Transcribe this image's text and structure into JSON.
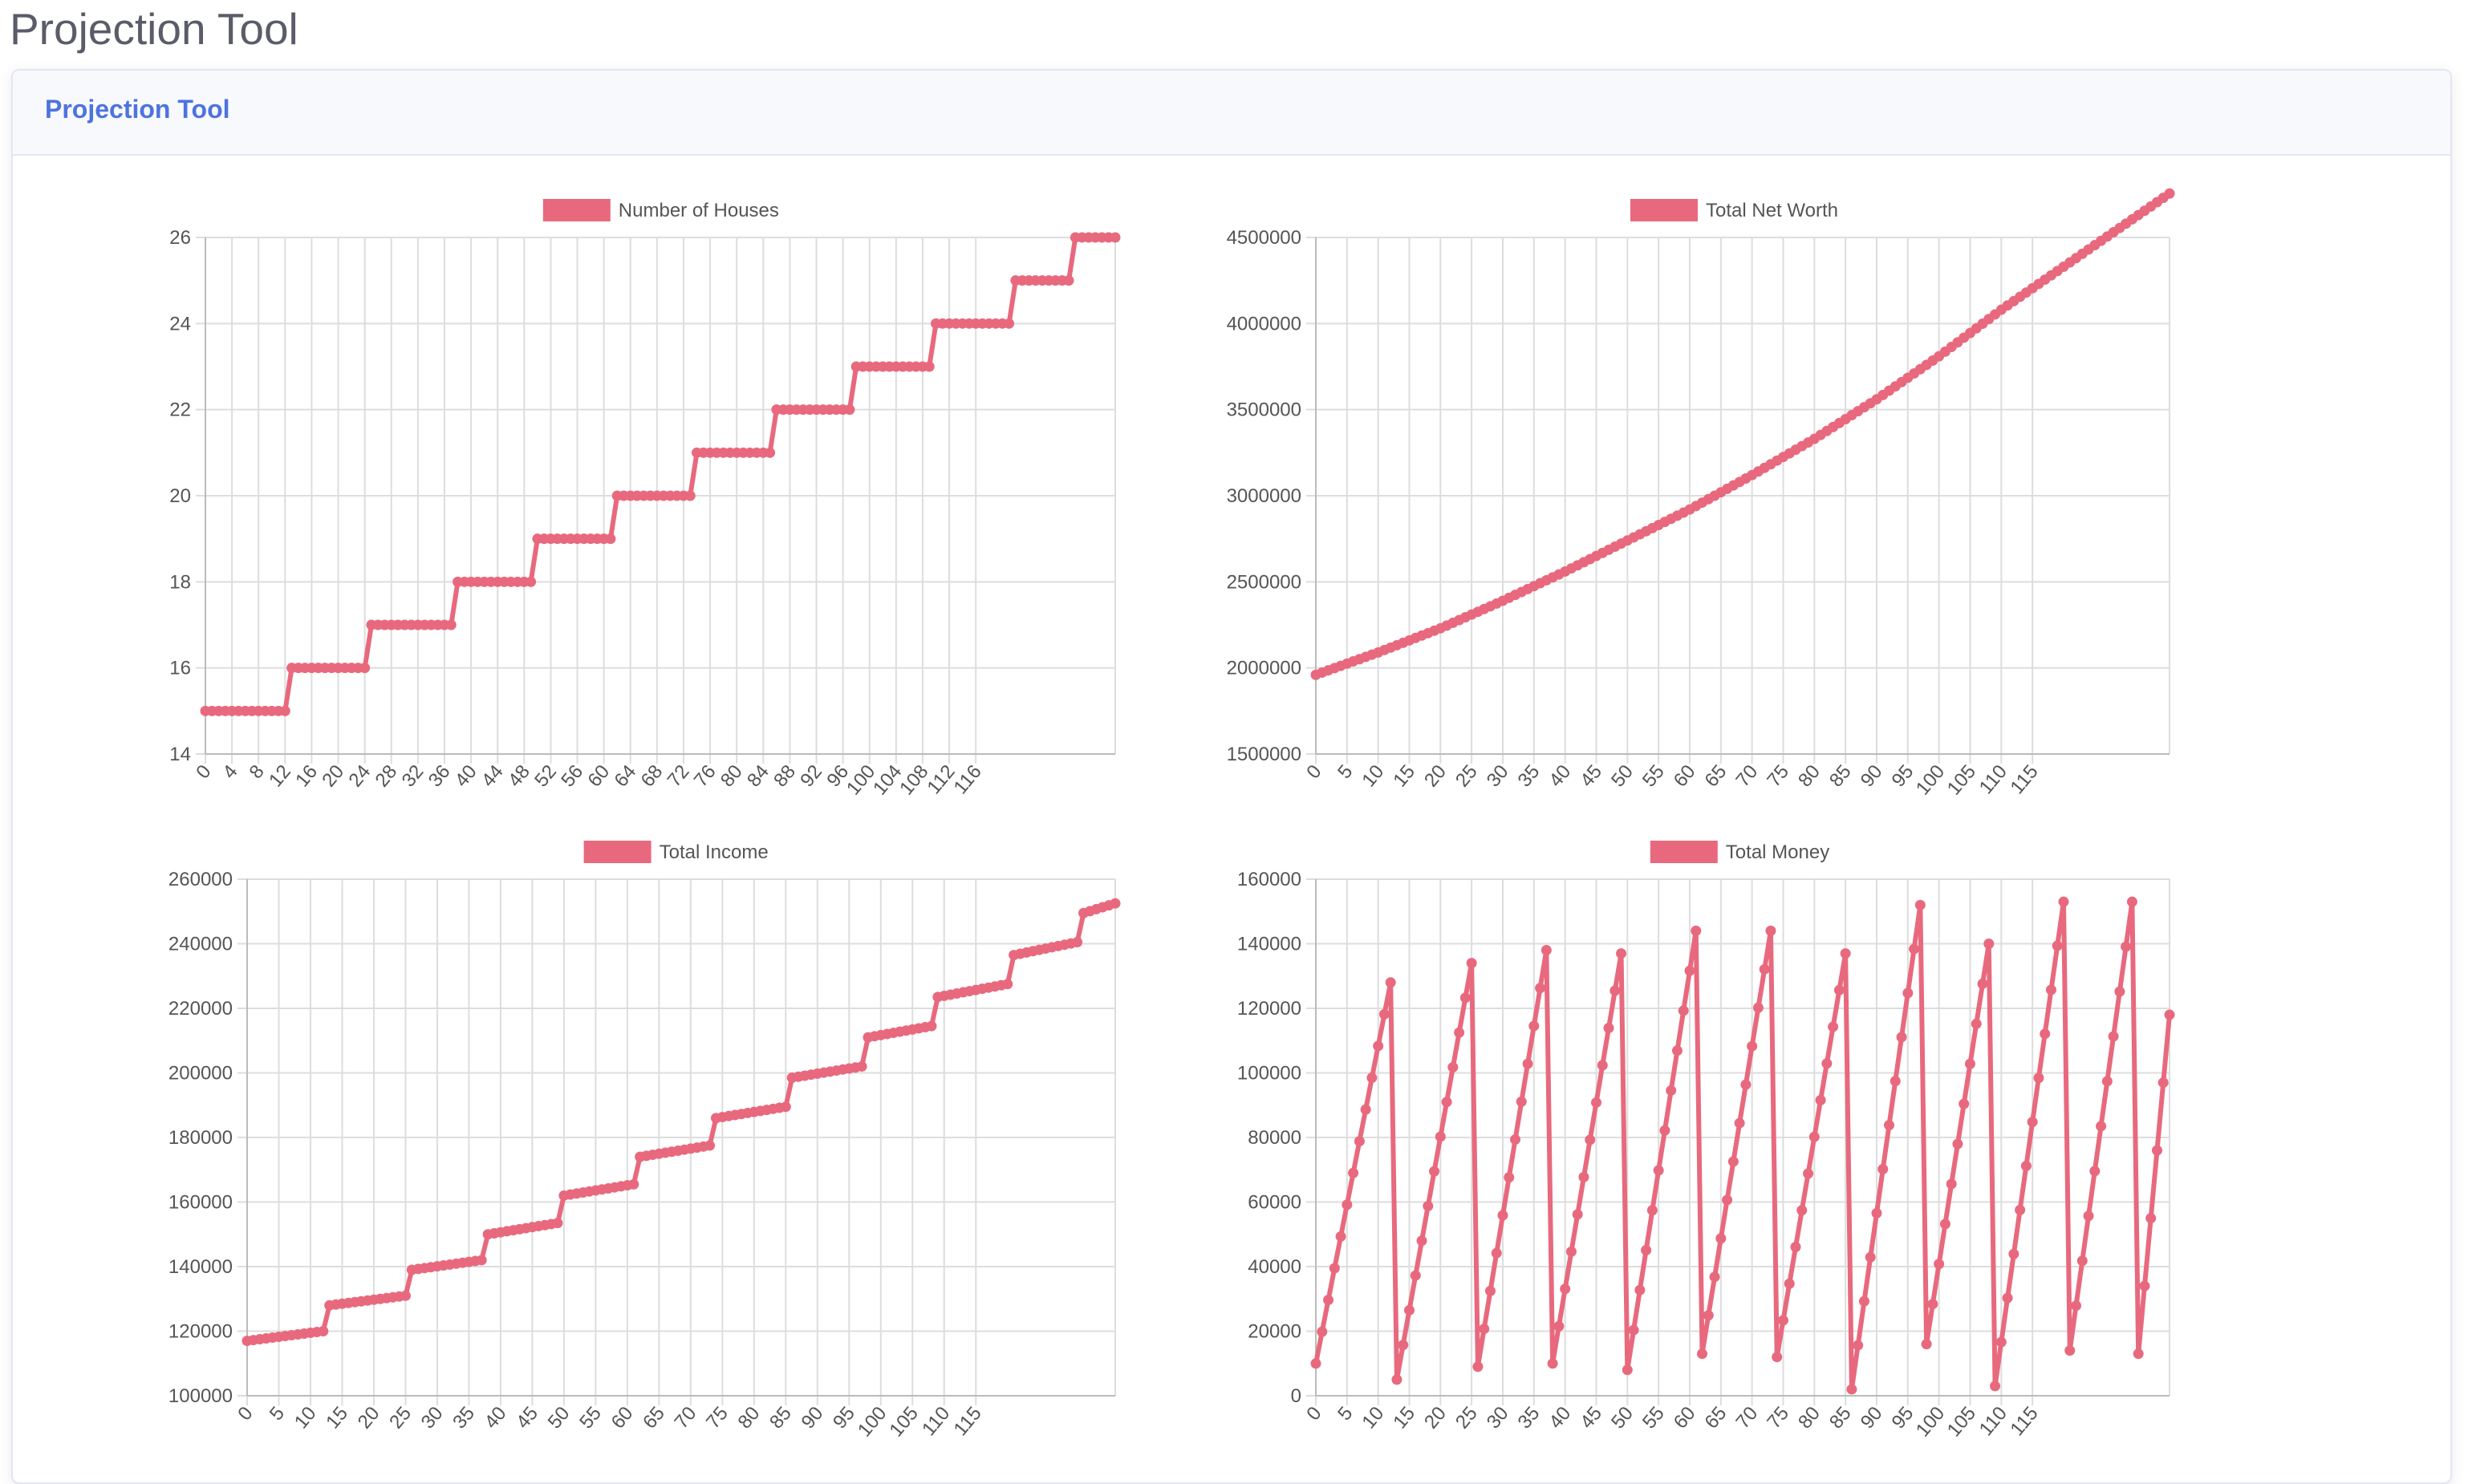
{
  "page": {
    "title": "Projection Tool"
  },
  "card": {
    "title": "Projection Tool"
  },
  "series_color": "#e8697e",
  "chart_data": [
    {
      "id": "houses",
      "type": "line",
      "title": "",
      "legend": {
        "label": "Number of Houses",
        "placement": "top"
      },
      "xlabel": "",
      "ylabel": "",
      "grid": true,
      "ylim": [
        14,
        26
      ],
      "y_ticks": [
        14,
        16,
        18,
        20,
        22,
        24,
        26
      ],
      "x": {
        "start": 0,
        "end": 120
      },
      "x_tick_labels": [
        0,
        4,
        8,
        12,
        16,
        20,
        24,
        28,
        32,
        36,
        40,
        44,
        48,
        52,
        56,
        60,
        64,
        68,
        72,
        76,
        80,
        84,
        88,
        92,
        96,
        100,
        104,
        108,
        112,
        116
      ],
      "values": [
        15,
        15,
        15,
        15,
        15,
        15,
        15,
        15,
        15,
        15,
        15,
        15,
        15,
        16,
        16,
        16,
        16,
        16,
        16,
        16,
        16,
        16,
        16,
        16,
        16,
        17,
        17,
        17,
        17,
        17,
        17,
        17,
        17,
        17,
        17,
        17,
        17,
        17,
        18,
        18,
        18,
        18,
        18,
        18,
        18,
        18,
        18,
        18,
        18,
        18,
        19,
        19,
        19,
        19,
        19,
        19,
        19,
        19,
        19,
        19,
        19,
        19,
        20,
        20,
        20,
        20,
        20,
        20,
        20,
        20,
        20,
        20,
        20,
        20,
        21,
        21,
        21,
        21,
        21,
        21,
        21,
        21,
        21,
        21,
        21,
        21,
        22,
        22,
        22,
        22,
        22,
        22,
        22,
        22,
        22,
        22,
        22,
        22,
        23,
        23,
        23,
        23,
        23,
        23,
        23,
        23,
        23,
        23,
        23,
        23,
        24,
        24,
        24,
        24,
        24,
        24,
        24,
        24,
        24,
        24,
        24,
        24,
        25,
        25,
        25,
        25,
        25,
        25,
        25,
        25,
        25,
        26,
        26,
        26,
        26,
        26,
        26,
        26
      ]
    },
    {
      "id": "networth",
      "type": "line",
      "title": "",
      "legend": {
        "label": "Total Net Worth",
        "placement": "top"
      },
      "xlabel": "",
      "ylabel": "",
      "grid": true,
      "ylim": [
        1500000,
        4500000
      ],
      "y_ticks": [
        1500000,
        2000000,
        2500000,
        3000000,
        3500000,
        4000000,
        4500000
      ],
      "x": {
        "start": 0,
        "end": 120
      },
      "x_tick_labels": [
        0,
        5,
        10,
        15,
        20,
        25,
        30,
        35,
        40,
        45,
        50,
        55,
        60,
        65,
        70,
        75,
        80,
        85,
        90,
        95,
        100,
        105,
        110,
        115
      ],
      "points": [
        [
          0,
          1960000
        ],
        [
          10,
          2090000
        ],
        [
          20,
          2230000
        ],
        [
          30,
          2390000
        ],
        [
          40,
          2560000
        ],
        [
          50,
          2740000
        ],
        [
          60,
          2920000
        ],
        [
          70,
          3120000
        ],
        [
          80,
          3330000
        ],
        [
          90,
          3560000
        ],
        [
          100,
          3810000
        ],
        [
          110,
          4080000
        ],
        [
          120,
          4330000
        ]
      ]
    },
    {
      "id": "income",
      "type": "line",
      "title": "",
      "legend": {
        "label": "Total Income",
        "placement": "top"
      },
      "xlabel": "",
      "ylabel": "",
      "grid": true,
      "ylim": [
        100000,
        260000
      ],
      "y_ticks": [
        100000,
        120000,
        140000,
        160000,
        180000,
        200000,
        220000,
        240000,
        260000
      ],
      "x": {
        "start": 0,
        "end": 120
      },
      "x_tick_labels": [
        0,
        5,
        10,
        15,
        20,
        25,
        30,
        35,
        40,
        45,
        50,
        55,
        60,
        65,
        70,
        75,
        80,
        85,
        90,
        95,
        100,
        105,
        110,
        115
      ],
      "segments": [
        {
          "x_start": 0,
          "x_end": 12,
          "y_start": 117000,
          "y_end": 120000
        },
        {
          "x_start": 13,
          "x_end": 25,
          "y_start": 128000,
          "y_end": 131000
        },
        {
          "x_start": 26,
          "x_end": 37,
          "y_start": 139000,
          "y_end": 142000
        },
        {
          "x_start": 38,
          "x_end": 49,
          "y_start": 150000,
          "y_end": 153500
        },
        {
          "x_start": 50,
          "x_end": 61,
          "y_start": 162000,
          "y_end": 165500
        },
        {
          "x_start": 62,
          "x_end": 73,
          "y_start": 174000,
          "y_end": 177500
        },
        {
          "x_start": 74,
          "x_end": 85,
          "y_start": 186000,
          "y_end": 189500
        },
        {
          "x_start": 86,
          "x_end": 97,
          "y_start": 198500,
          "y_end": 202000
        },
        {
          "x_start": 98,
          "x_end": 108,
          "y_start": 211000,
          "y_end": 214500
        },
        {
          "x_start": 109,
          "x_end": 120,
          "y_start": 223500,
          "y_end": 227500
        },
        {
          "x_start": 121,
          "x_end": 131,
          "y_start": 236500,
          "y_end": 240500
        },
        {
          "x_start": 132,
          "x_end": 137,
          "y_start": 249500,
          "y_end": 252500
        }
      ]
    },
    {
      "id": "money",
      "type": "line",
      "title": "",
      "legend": {
        "label": "Total Money",
        "placement": "top"
      },
      "xlabel": "",
      "ylabel": "",
      "grid": true,
      "ylim": [
        0,
        160000
      ],
      "y_ticks": [
        0,
        20000,
        40000,
        60000,
        80000,
        100000,
        120000,
        140000,
        160000
      ],
      "x": {
        "start": 0,
        "end": 120
      },
      "x_tick_labels": [
        0,
        5,
        10,
        15,
        20,
        25,
        30,
        35,
        40,
        45,
        50,
        55,
        60,
        65,
        70,
        75,
        80,
        85,
        90,
        95,
        100,
        105,
        110,
        115
      ],
      "cycles": [
        {
          "x_start": 0,
          "y_start": 10000,
          "x_peak": 12,
          "y_peak": 128000
        },
        {
          "x_start": 13,
          "y_start": 5000,
          "x_peak": 25,
          "y_peak": 134000
        },
        {
          "x_start": 26,
          "y_start": 9000,
          "x_peak": 37,
          "y_peak": 138000
        },
        {
          "x_start": 38,
          "y_start": 10000,
          "x_peak": 49,
          "y_peak": 137000
        },
        {
          "x_start": 50,
          "y_start": 8000,
          "x_peak": 61,
          "y_peak": 144000
        },
        {
          "x_start": 62,
          "y_start": 13000,
          "x_peak": 73,
          "y_peak": 144000
        },
        {
          "x_start": 74,
          "y_start": 12000,
          "x_peak": 85,
          "y_peak": 137000
        },
        {
          "x_start": 86,
          "y_start": 2000,
          "x_peak": 97,
          "y_peak": 152000
        },
        {
          "x_start": 98,
          "y_start": 16000,
          "x_peak": 108,
          "y_peak": 140000
        },
        {
          "x_start": 109,
          "y_start": 3000,
          "x_peak": 120,
          "y_peak": 153000
        },
        {
          "x_start": 121,
          "y_start": 14000,
          "x_peak": 131,
          "y_peak": 153000
        },
        {
          "x_start": 132,
          "y_start": 13000,
          "x_peak": 137,
          "y_peak": 118000
        }
      ]
    }
  ]
}
